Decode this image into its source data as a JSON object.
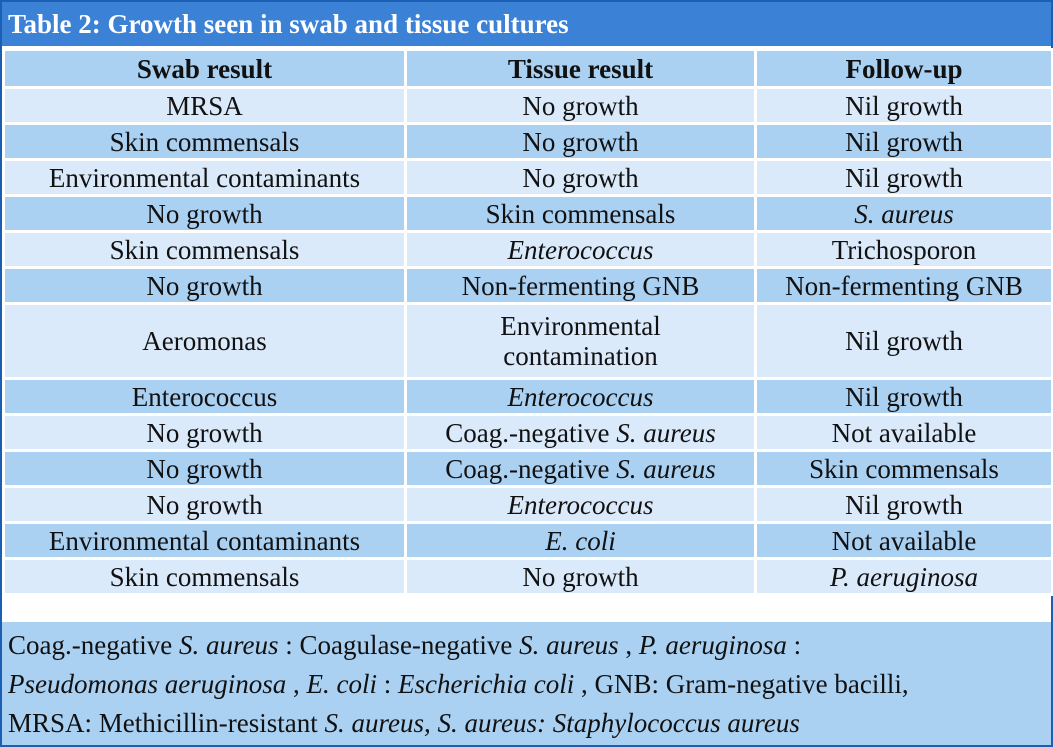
{
  "title": "Table 2: Growth seen in swab and tissue cultures",
  "headers": [
    "Swab result",
    "Tissue result",
    "Follow-up"
  ],
  "rows": [
    [
      "MRSA",
      "No growth",
      "Nil growth"
    ],
    [
      "Skin commensals",
      "No growth",
      "Nil growth"
    ],
    [
      "Environmental contaminants",
      "No growth",
      "Nil growth"
    ],
    [
      "No growth",
      "Skin commensals",
      "S. aureus"
    ],
    [
      "Skin commensals",
      "Enterococcus",
      "Trichosporon"
    ],
    [
      "No growth",
      "Non-fermenting GNB",
      "Non-fermenting GNB"
    ],
    [
      "Aeromonas",
      "Environmental contamination",
      "Nil growth"
    ],
    [
      "Enterococcus",
      "Enterococcus",
      "Nil growth"
    ],
    [
      "No growth",
      "Coag.-negative S. aureus",
      "Not available"
    ],
    [
      "No growth",
      "Coag.-negative S. aureus",
      "Skin commensals"
    ],
    [
      "No growth",
      "Enterococcus",
      "Nil growth"
    ],
    [
      "Environmental contaminants",
      "E. coli",
      "Not available"
    ],
    [
      "Skin commensals",
      "No growth",
      "P. aeruginosa"
    ]
  ],
  "cells": {
    "r4c3": "S. aureus",
    "r5c2": "Enterococcus",
    "r7c2_line1": "Environmental",
    "r7c2_line2": "contamination",
    "r8c2": "Enterococcus",
    "r9c2_a": "Coag.-negative",
    "r9c2_b": "S. aureus",
    "r10c2_a": "Coag.-negative",
    "r10c2_b": "S. aureus",
    "r11c2": "Enterococcus",
    "r12c2": "E. coli",
    "r13c3": "P. aeruginosa"
  },
  "footnote": {
    "s1": "Coag.-negative ",
    "s2": "S. aureus",
    "s3": " : Coagulase-negative ",
    "s4": "S. aureus",
    "s5": " , ",
    "s6": "P. aeruginosa",
    "s7": " :",
    "s8": "Pseudomonas aeruginosa",
    "s9": " , ",
    "s10": "E. coli",
    "s11": " : ",
    "s12": "Escherichia coli",
    "s13": " , GNB: Gram-negative bacilli,",
    "s14": "MRSA: Methicillin-resistant ",
    "s15": "S. aureus, S. aureus: Staphylococcus aureus"
  },
  "colors": {
    "title_bg": "#3b82d6",
    "row_dark": "#aad0f2",
    "row_light": "#dbeafb",
    "border": "#1a5fb4"
  }
}
